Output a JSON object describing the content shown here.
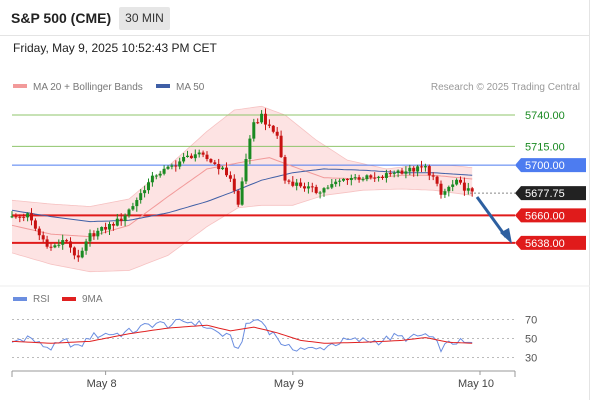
{
  "header": {
    "title": "S&P 500 (CME)",
    "timeframe": "30 MIN"
  },
  "datetime": "Friday, May 9, 2025 10:52:43 PM CET",
  "colors": {
    "up": "#1a8a22",
    "down": "#c81212",
    "bb_fill": "#fde3e3",
    "ma20": "#f29a9a",
    "ma50": "#3f5fa6",
    "resistance": "#8fc46b",
    "pivot": "#4d7cf0",
    "support": "#e01b1b",
    "current": "#222222",
    "arrow": "#2d5fa0",
    "rsi": "#6b8ee0",
    "rsi_ma": "#e02020"
  },
  "chart_data": [
    {
      "type": "line",
      "subtype": "candlestick",
      "legend": [
        {
          "name": "MA 20 + Bollinger Bands",
          "color": "#f29a9a"
        },
        {
          "name": "MA 50",
          "color": "#3f5fa6"
        }
      ],
      "watermark": "Research © 2025 Trading Central",
      "ylim": [
        5606,
        5752
      ],
      "x_ticks": [
        {
          "label": "May 8",
          "index": 24
        },
        {
          "label": "May 9",
          "index": 72
        },
        {
          "label": "May 10",
          "index": 120
        }
      ],
      "levels": [
        {
          "value": 5740.0,
          "label": "5740.00",
          "kind": "resistance"
        },
        {
          "value": 5715.0,
          "label": "5715.00",
          "kind": "resistance"
        },
        {
          "value": 5700.0,
          "label": "5700.00",
          "kind": "pivot"
        },
        {
          "value": 5677.75,
          "label": "5677.75",
          "kind": "current"
        },
        {
          "value": 5660.0,
          "label": "5660.00",
          "kind": "support"
        },
        {
          "value": 5638.0,
          "label": "5638.00",
          "kind": "support"
        }
      ],
      "forecast_arrow": {
        "from": 5677,
        "to": 5638
      },
      "close_path": [
        [
          0,
          5658
        ],
        [
          4,
          5660
        ],
        [
          7,
          5644
        ],
        [
          10,
          5634
        ],
        [
          14,
          5640
        ],
        [
          17,
          5624
        ],
        [
          20,
          5644
        ],
        [
          24,
          5650
        ],
        [
          28,
          5657
        ],
        [
          31,
          5668
        ],
        [
          34,
          5682
        ],
        [
          37,
          5693
        ],
        [
          40,
          5697
        ],
        [
          44,
          5705
        ],
        [
          47,
          5709
        ],
        [
          50,
          5705
        ],
        [
          53,
          5699
        ],
        [
          56,
          5690
        ],
        [
          58,
          5668
        ],
        [
          60,
          5706
        ],
        [
          62,
          5732
        ],
        [
          64,
          5740
        ],
        [
          66,
          5729
        ],
        [
          68,
          5724
        ],
        [
          70,
          5688
        ],
        [
          74,
          5684
        ],
        [
          78,
          5679
        ],
        [
          82,
          5684
        ],
        [
          86,
          5690
        ],
        [
          90,
          5690
        ],
        [
          94,
          5689
        ],
        [
          98,
          5695
        ],
        [
          102,
          5696
        ],
        [
          106,
          5698
        ],
        [
          108,
          5690
        ],
        [
          110,
          5676
        ],
        [
          112,
          5682
        ],
        [
          114,
          5686
        ],
        [
          117,
          5680
        ],
        [
          118,
          5677
        ]
      ],
      "ma20": [
        [
          0,
          5652
        ],
        [
          10,
          5645
        ],
        [
          20,
          5643
        ],
        [
          30,
          5652
        ],
        [
          40,
          5675
        ],
        [
          50,
          5697
        ],
        [
          60,
          5703
        ],
        [
          66,
          5706
        ],
        [
          72,
          5699
        ],
        [
          80,
          5690
        ],
        [
          90,
          5689
        ],
        [
          100,
          5692
        ],
        [
          108,
          5692
        ],
        [
          118,
          5689
        ]
      ],
      "ma50": [
        [
          0,
          5664
        ],
        [
          10,
          5659
        ],
        [
          20,
          5655
        ],
        [
          30,
          5656
        ],
        [
          40,
          5662
        ],
        [
          50,
          5671
        ],
        [
          56,
          5678
        ],
        [
          64,
          5688
        ],
        [
          72,
          5694
        ],
        [
          80,
          5697
        ],
        [
          90,
          5696
        ],
        [
          100,
          5694
        ],
        [
          108,
          5694
        ],
        [
          118,
          5692
        ]
      ],
      "bb_upper": [
        [
          0,
          5672
        ],
        [
          10,
          5669
        ],
        [
          20,
          5667
        ],
        [
          30,
          5673
        ],
        [
          40,
          5699
        ],
        [
          50,
          5727
        ],
        [
          57,
          5744
        ],
        [
          64,
          5747
        ],
        [
          70,
          5740
        ],
        [
          78,
          5720
        ],
        [
          86,
          5704
        ],
        [
          96,
          5697
        ],
        [
          104,
          5700
        ],
        [
          112,
          5700
        ],
        [
          118,
          5698
        ]
      ],
      "bb_lower": [
        [
          0,
          5630
        ],
        [
          10,
          5621
        ],
        [
          20,
          5615
        ],
        [
          30,
          5616
        ],
        [
          40,
          5628
        ],
        [
          50,
          5651
        ],
        [
          58,
          5666
        ],
        [
          64,
          5668
        ],
        [
          72,
          5668
        ],
        [
          80,
          5676
        ],
        [
          90,
          5680
        ],
        [
          100,
          5681
        ],
        [
          108,
          5680
        ],
        [
          118,
          5676
        ]
      ]
    },
    {
      "type": "line",
      "legend": [
        {
          "name": "RSI",
          "color": "#6b8ee0"
        },
        {
          "name": "9MA",
          "color": "#e02020"
        }
      ],
      "ylim": [
        20,
        80
      ],
      "y_ticks": [
        70,
        50,
        30
      ],
      "rsi": [
        [
          0,
          46
        ],
        [
          4,
          52
        ],
        [
          7,
          44
        ],
        [
          10,
          40
        ],
        [
          14,
          47
        ],
        [
          17,
          40
        ],
        [
          20,
          52
        ],
        [
          24,
          55
        ],
        [
          28,
          55
        ],
        [
          31,
          58
        ],
        [
          34,
          63
        ],
        [
          37,
          66
        ],
        [
          40,
          64
        ],
        [
          44,
          68
        ],
        [
          47,
          67
        ],
        [
          50,
          62
        ],
        [
          53,
          56
        ],
        [
          56,
          50
        ],
        [
          58,
          38
        ],
        [
          60,
          62
        ],
        [
          62,
          70
        ],
        [
          64,
          68
        ],
        [
          66,
          58
        ],
        [
          68,
          52
        ],
        [
          70,
          40
        ],
        [
          74,
          40
        ],
        [
          78,
          38
        ],
        [
          82,
          44
        ],
        [
          86,
          48
        ],
        [
          90,
          48
        ],
        [
          94,
          47
        ],
        [
          98,
          52
        ],
        [
          102,
          50
        ],
        [
          106,
          54
        ],
        [
          108,
          48
        ],
        [
          110,
          40
        ],
        [
          112,
          44
        ],
        [
          114,
          47
        ],
        [
          117,
          44
        ],
        [
          118,
          45
        ]
      ],
      "rsi_ma": [
        [
          0,
          47
        ],
        [
          10,
          45
        ],
        [
          20,
          47
        ],
        [
          30,
          55
        ],
        [
          40,
          61
        ],
        [
          50,
          64
        ],
        [
          56,
          58
        ],
        [
          62,
          62
        ],
        [
          68,
          56
        ],
        [
          74,
          48
        ],
        [
          80,
          45
        ],
        [
          90,
          46
        ],
        [
          100,
          48
        ],
        [
          106,
          51
        ],
        [
          112,
          46
        ],
        [
          118,
          45
        ]
      ]
    }
  ]
}
